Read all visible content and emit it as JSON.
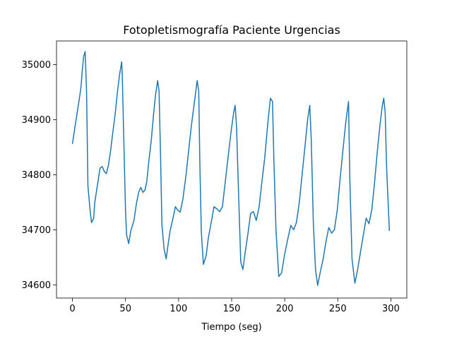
{
  "chart_data": {
    "type": "line",
    "title": "Fotopletismografía Paciente Urgencias",
    "xlabel": "Tiempo (seg)",
    "xlim": [
      -15,
      315
    ],
    "xticks": [
      0,
      50,
      100,
      150,
      200,
      250,
      300
    ],
    "ylim": [
      34576,
      35043
    ],
    "yticks": [
      34600,
      34700,
      34800,
      34900,
      35000
    ],
    "grid": false,
    "series": [
      {
        "color": "#1f77b4",
        "x": [
          0,
          2,
          4.6,
          6.6,
          8,
          9.3,
          10.6,
          12,
          13.3,
          14,
          14.6,
          16.6,
          18,
          20,
          21,
          23,
          26,
          28,
          30,
          32,
          34,
          36,
          38,
          40.5,
          42.5,
          44.5,
          46.4,
          47,
          48.4,
          50,
          51,
          53,
          55,
          58,
          60.4,
          62.4,
          64.4,
          66.4,
          68.3,
          70,
          72,
          74.3,
          76.3,
          78.3,
          80.3,
          81.6,
          83,
          84.3,
          86.3,
          88.3,
          89.6,
          92,
          95,
          97,
          99,
          101.5,
          104,
          107,
          109.5,
          112,
          115,
          117.5,
          119,
          120,
          121.4,
          123.4,
          126,
          128,
          130.7,
          133.4,
          136,
          138.7,
          141.3,
          144,
          146.6,
          149.3,
          152,
          153.3,
          154.6,
          156.6,
          158.6,
          160.6,
          162.6,
          165.2,
          167.9,
          170.5,
          173.2,
          175.9,
          178.5,
          181.2,
          183.8,
          186.5,
          188.5,
          189.8,
          191.8,
          194.4,
          197.1,
          199.7,
          202.4,
          205.7,
          208.4,
          211,
          213.7,
          216.3,
          219,
          221.6,
          223.6,
          225,
          227,
          229,
          231,
          233.6,
          236.2,
          238.9,
          241.5,
          244.2,
          246.8,
          249.5,
          252.2,
          254.8,
          257.5,
          260.1,
          261.4,
          263.4,
          266.1,
          268.7,
          271.4,
          274.1,
          276.7,
          279.4,
          282,
          284.7,
          287.3,
          290,
          292,
          293.3,
          294.6,
          296,
          298.6
        ],
        "values": [
          34856,
          34882,
          34914,
          34939,
          34958,
          34990,
          35015,
          35024,
          34952,
          34863,
          34780,
          34736,
          34713,
          34721,
          34749,
          34774,
          34812,
          34815,
          34806,
          34802,
          34818,
          34844,
          34876,
          34914,
          34952,
          34983,
          35005,
          34977,
          34863,
          34736,
          34691,
          34675,
          34698,
          34717,
          34749,
          34768,
          34777,
          34768,
          34772,
          34787,
          34825,
          34863,
          34907,
          34945,
          34971,
          34952,
          34837,
          34710,
          34666,
          34647,
          34666,
          34698,
          34723,
          34742,
          34736,
          34732,
          34755,
          34799,
          34844,
          34888,
          34933,
          34971,
          34952,
          34825,
          34698,
          34637,
          34653,
          34685,
          34713,
          34742,
          34738,
          34733,
          34742,
          34787,
          34831,
          34876,
          34914,
          34926,
          34888,
          34761,
          34641,
          34628,
          34657,
          34691,
          34730,
          34733,
          34717,
          34742,
          34787,
          34831,
          34888,
          34939,
          34933,
          34825,
          34698,
          34615,
          34622,
          34653,
          34679,
          34708,
          34700,
          34713,
          34749,
          34799,
          34850,
          34901,
          34926,
          34863,
          34710,
          34628,
          34599,
          34624,
          34647,
          34679,
          34704,
          34694,
          34700,
          34736,
          34793,
          34844,
          34895,
          34933,
          34787,
          34647,
          34603,
          34628,
          34660,
          34691,
          34721,
          34711,
          34736,
          34787,
          34844,
          34895,
          34926,
          34939,
          34914,
          34812,
          34698
        ]
      }
    ]
  }
}
